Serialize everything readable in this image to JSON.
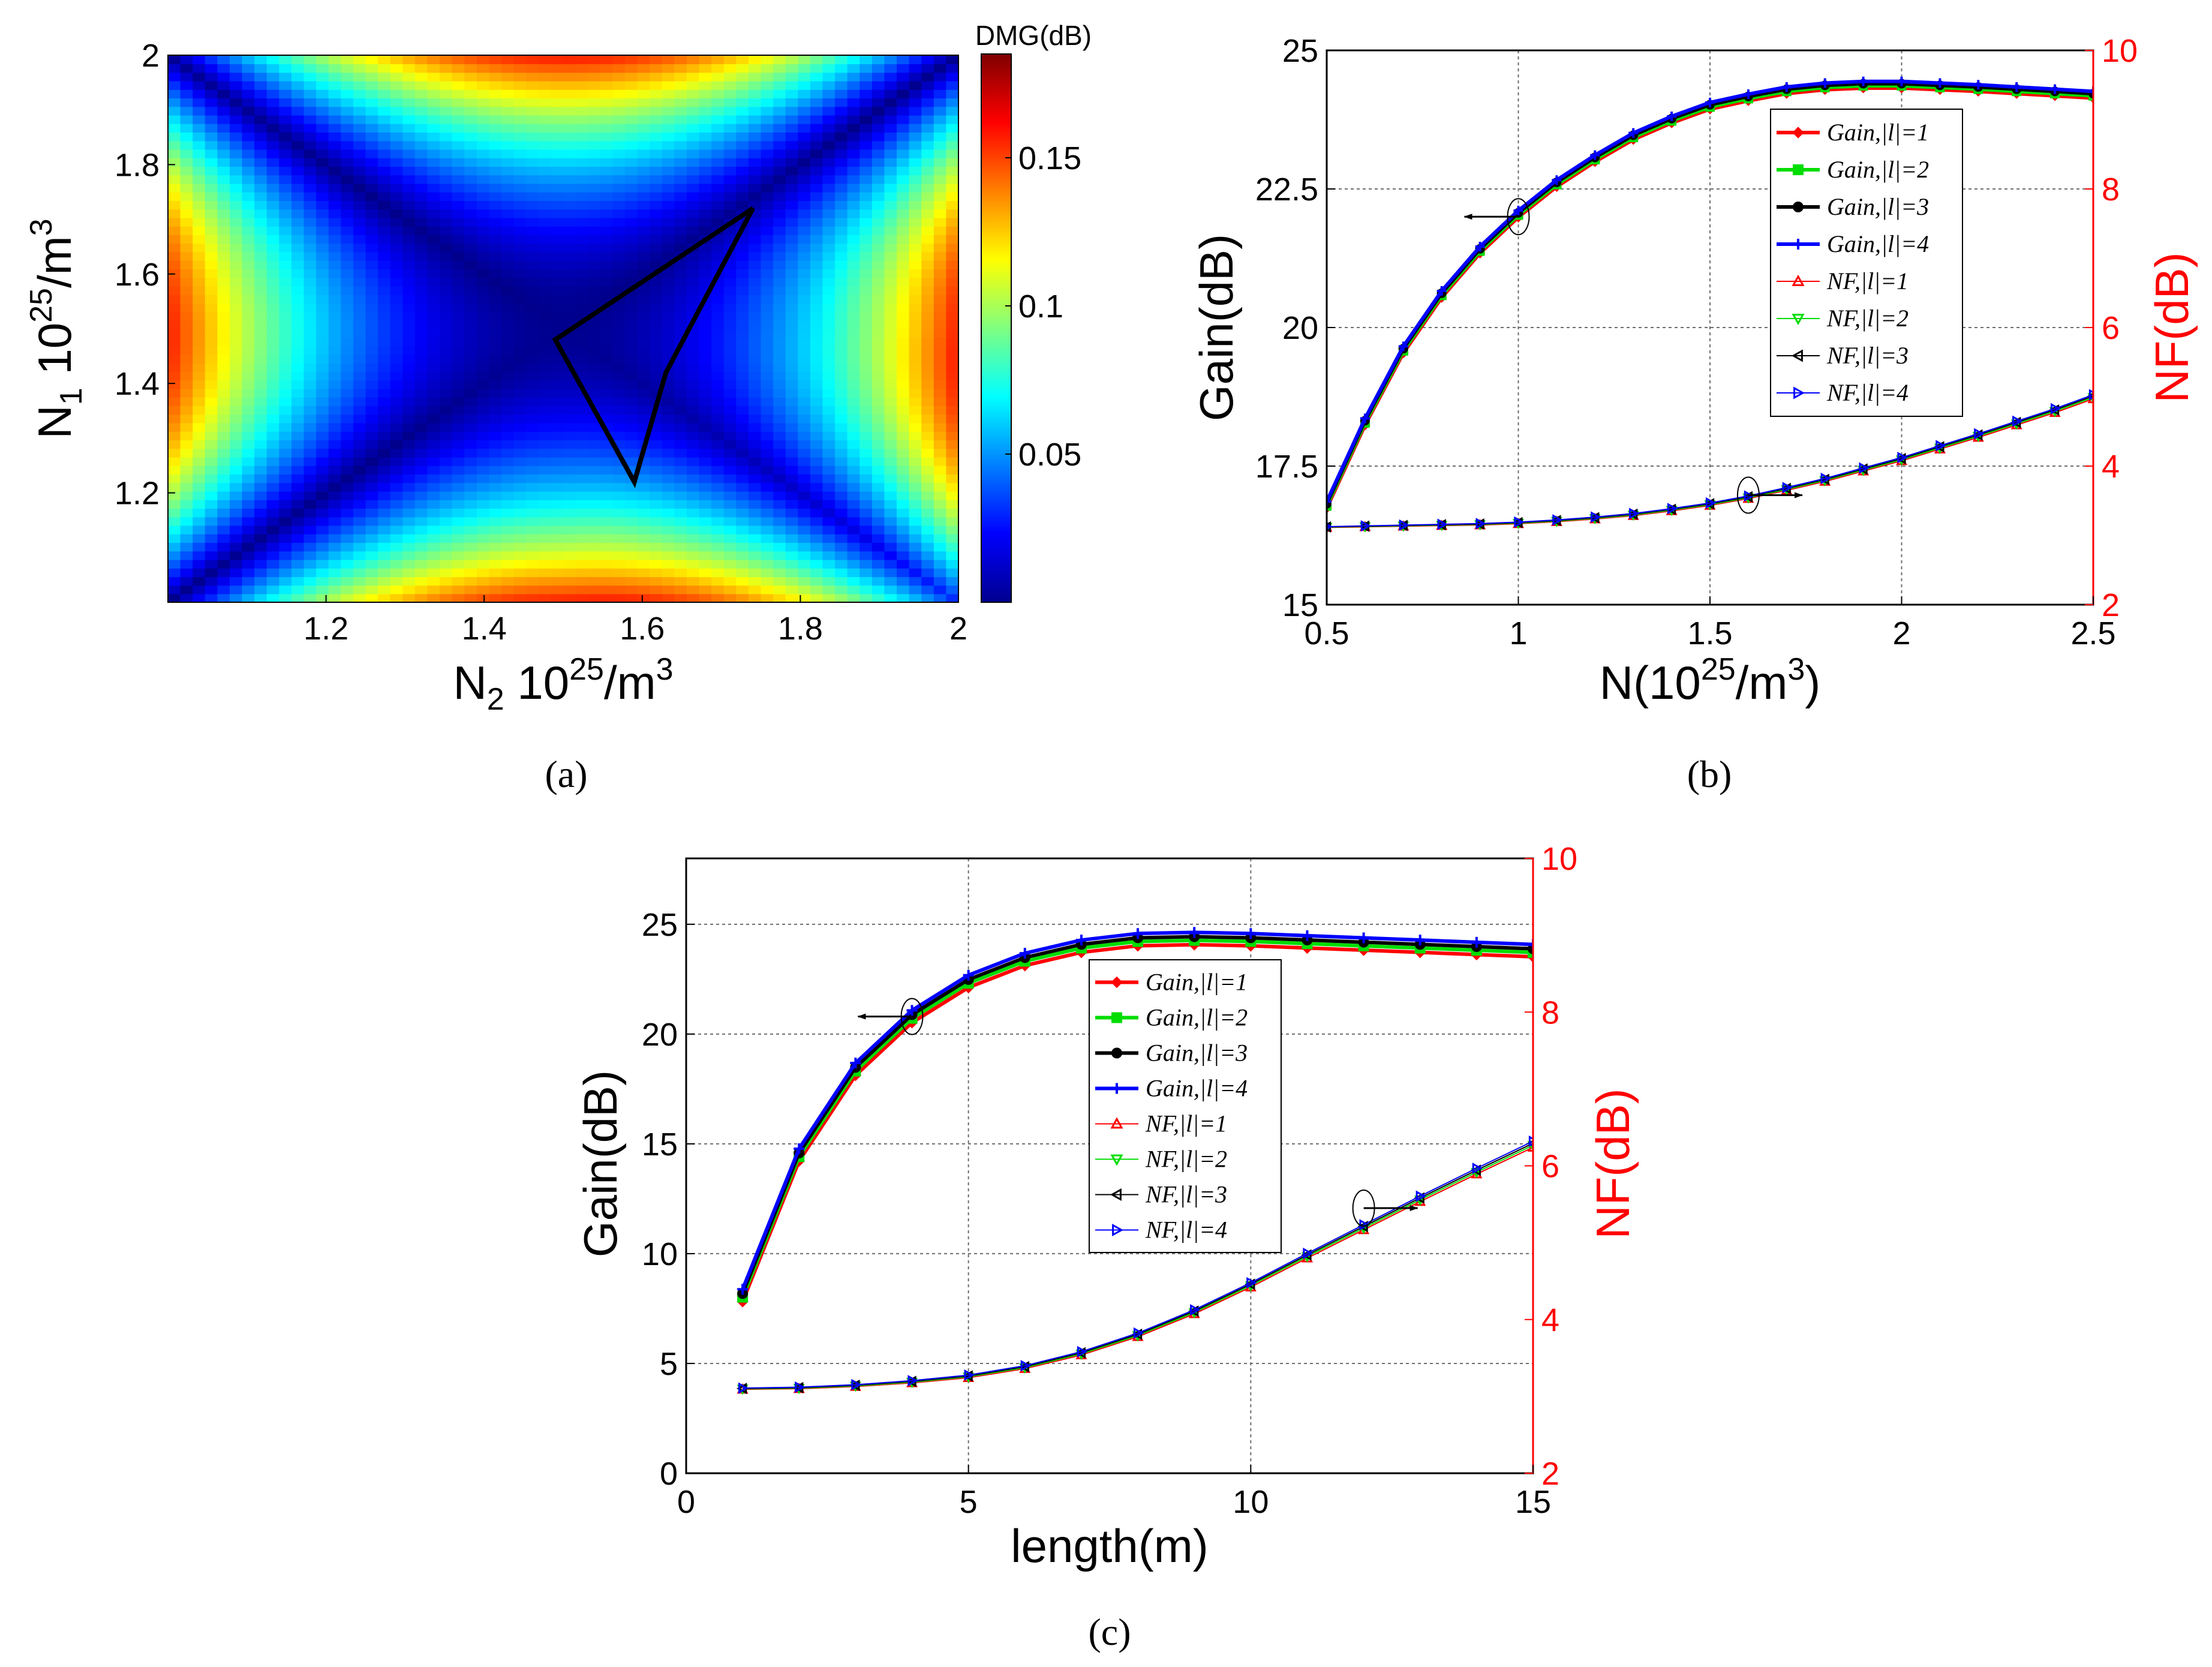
{
  "chart_data": [
    {
      "id": "a",
      "type": "heatmap",
      "caption": "(a)",
      "xlabel": "N",
      "xlabel_sub": "2",
      "xlabel_unit": "10",
      "xlabel_unit_sup": "25",
      "xlabel_unit_rest": "/m",
      "xlabel_unit_sup2": "3",
      "ylabel": "N",
      "ylabel_sub": "1",
      "ylabel_unit": "10",
      "ylabel_unit_sup": "25",
      "ylabel_unit_rest": "/m",
      "ylabel_unit_sup2": "3",
      "xlim": [
        1.0,
        2.0
      ],
      "ylim": [
        1.0,
        2.0
      ],
      "x_ticks": [
        "1.2",
        "1.4",
        "1.6",
        "1.8",
        "2"
      ],
      "x_tick_values": [
        1.2,
        1.4,
        1.6,
        1.8,
        2.0
      ],
      "y_ticks": [
        "1.2",
        "1.4",
        "1.6",
        "1.8",
        "2"
      ],
      "y_tick_values": [
        1.2,
        1.4,
        1.6,
        1.8,
        2.0
      ],
      "colorbar": {
        "title": "DMG(dB)",
        "range": [
          0.0,
          0.185
        ],
        "ticks": [
          "0.05",
          "0.1",
          "0.15"
        ],
        "tick_values": [
          0.05,
          0.1,
          0.15
        ],
        "colormap": "jet"
      },
      "region_outline": [
        [
          1.49,
          1.48
        ],
        [
          1.74,
          1.72
        ],
        [
          1.63,
          1.42
        ],
        [
          1.59,
          1.22
        ]
      ]
    },
    {
      "id": "b",
      "type": "line",
      "caption": "(b)",
      "xlabel": "N(10",
      "xlabel_sup": "25",
      "xlabel_rest": "/m",
      "xlabel_sup2": "3",
      "xlabel_close": ")",
      "ylabel_left": "Gain(dB)",
      "ylabel_right": "NF(dB)",
      "xlim": [
        0.5,
        2.5
      ],
      "ylim_left": [
        15,
        25
      ],
      "ylim_right": [
        2,
        10
      ],
      "x_ticks": [
        "0.5",
        "1",
        "1.5",
        "2",
        "2.5"
      ],
      "x_tick_values": [
        0.5,
        1.0,
        1.5,
        2.0,
        2.5
      ],
      "y_ticks_left": [
        "15",
        "17.5",
        "20",
        "22.5",
        "25"
      ],
      "y_tick_values_left": [
        15,
        17.5,
        20,
        22.5,
        25
      ],
      "y_ticks_right": [
        "2",
        "4",
        "6",
        "8",
        "10"
      ],
      "y_tick_values_right": [
        2,
        4,
        6,
        8,
        10
      ],
      "x": [
        0.5,
        0.6,
        0.7,
        0.8,
        0.9,
        1.0,
        1.1,
        1.2,
        1.3,
        1.4,
        1.5,
        1.6,
        1.7,
        1.8,
        1.9,
        2.0,
        2.1,
        2.2,
        2.3,
        2.4,
        2.5
      ],
      "gain_series": [
        {
          "name": "Gain,|l|=1",
          "color": "#ff0000",
          "marker": "diamond",
          "offset": -0.06
        },
        {
          "name": "Gain,|l|=2",
          "color": "#00dd00",
          "marker": "square",
          "offset": -0.02
        },
        {
          "name": "Gain,|l|=3",
          "color": "#000000",
          "marker": "circle",
          "offset": 0.02
        },
        {
          "name": "Gain,|l|=4",
          "color": "#0000ff",
          "marker": "plus",
          "offset": 0.06
        }
      ],
      "gain_values": [
        16.8,
        18.3,
        19.6,
        20.6,
        21.4,
        22.05,
        22.6,
        23.05,
        23.45,
        23.75,
        24.0,
        24.15,
        24.28,
        24.35,
        24.38,
        24.38,
        24.35,
        24.32,
        24.28,
        24.24,
        24.2
      ],
      "nf_series": [
        {
          "name": "NF,|l|=1",
          "color": "#ff0000",
          "marker": "triangle-up",
          "offset": -0.03
        },
        {
          "name": "NF,|l|=2",
          "color": "#00dd00",
          "marker": "triangle-down",
          "offset": -0.01
        },
        {
          "name": "NF,|l|=3",
          "color": "#000000",
          "marker": "triangle-left",
          "offset": 0.01
        },
        {
          "name": "NF,|l|=4",
          "color": "#0000ff",
          "marker": "triangle-right",
          "offset": 0.03
        }
      ],
      "nf_values": [
        3.12,
        3.13,
        3.14,
        3.15,
        3.16,
        3.18,
        3.21,
        3.25,
        3.3,
        3.37,
        3.45,
        3.55,
        3.67,
        3.8,
        3.95,
        4.1,
        4.27,
        4.44,
        4.62,
        4.8,
        5.0
      ],
      "legend_position": "top-right",
      "annotations": [
        {
          "target": "gain",
          "x": 1.0,
          "axis": "left",
          "y": 22.0,
          "arrow": "left"
        },
        {
          "target": "nf",
          "x": 1.6,
          "axis": "right",
          "y": 3.58,
          "arrow": "right"
        }
      ]
    },
    {
      "id": "c",
      "type": "line",
      "caption": "(c)",
      "xlabel": "length(m)",
      "ylabel_left": "Gain(dB)",
      "ylabel_right": "NF(dB)",
      "xlim": [
        0,
        15
      ],
      "ylim_left": [
        0,
        28
      ],
      "ylim_right": [
        2,
        10
      ],
      "x_ticks": [
        "0",
        "5",
        "10",
        "15"
      ],
      "x_tick_values": [
        0,
        5,
        10,
        15
      ],
      "y_ticks_left": [
        "0",
        "5",
        "10",
        "15",
        "20",
        "25"
      ],
      "y_tick_values_left": [
        0,
        5,
        10,
        15,
        20,
        25
      ],
      "y_ticks_right": [
        "2",
        "4",
        "6",
        "8",
        "10"
      ],
      "y_tick_values_right": [
        2,
        4,
        6,
        8,
        10
      ],
      "x": [
        1,
        2,
        3,
        4,
        5,
        6,
        7,
        8,
        9,
        10,
        11,
        12,
        13,
        14,
        15
      ],
      "gain_series": [
        {
          "name": "Gain,|l|=1",
          "color": "#ff0000",
          "marker": "diamond",
          "offset": -0.1
        },
        {
          "name": "Gain,|l|=2",
          "color": "#00dd00",
          "marker": "square",
          "offset": -0.03
        },
        {
          "name": "Gain,|l|=3",
          "color": "#000000",
          "marker": "circle",
          "offset": 0.03
        },
        {
          "name": "Gain,|l|=4",
          "color": "#0000ff",
          "marker": "plus",
          "offset": 0.1
        }
      ],
      "gain_values": [
        8.1,
        14.5,
        18.4,
        20.8,
        22.4,
        23.4,
        24.0,
        24.3,
        24.35,
        24.3,
        24.2,
        24.1,
        24.0,
        23.9,
        23.8
      ],
      "nf_series": [
        {
          "name": "NF,|l|=1",
          "color": "#ff0000",
          "marker": "triangle-up",
          "offset": -0.04
        },
        {
          "name": "NF,|l|=2",
          "color": "#00dd00",
          "marker": "triangle-down",
          "offset": -0.013
        },
        {
          "name": "NF,|l|=3",
          "color": "#000000",
          "marker": "triangle-left",
          "offset": 0.013
        },
        {
          "name": "NF,|l|=4",
          "color": "#0000ff",
          "marker": "triangle-right",
          "offset": 0.04
        }
      ],
      "nf_values": [
        3.1,
        3.11,
        3.14,
        3.19,
        3.26,
        3.38,
        3.56,
        3.8,
        4.1,
        4.45,
        4.83,
        5.2,
        5.57,
        5.93,
        6.28
      ],
      "legend_position": "center",
      "annotations": [
        {
          "target": "gain",
          "x": 4,
          "axis": "left",
          "y": 20.8,
          "arrow": "left"
        },
        {
          "target": "nf",
          "x": 12,
          "axis": "right",
          "y": 5.45,
          "arrow": "right"
        }
      ]
    }
  ]
}
